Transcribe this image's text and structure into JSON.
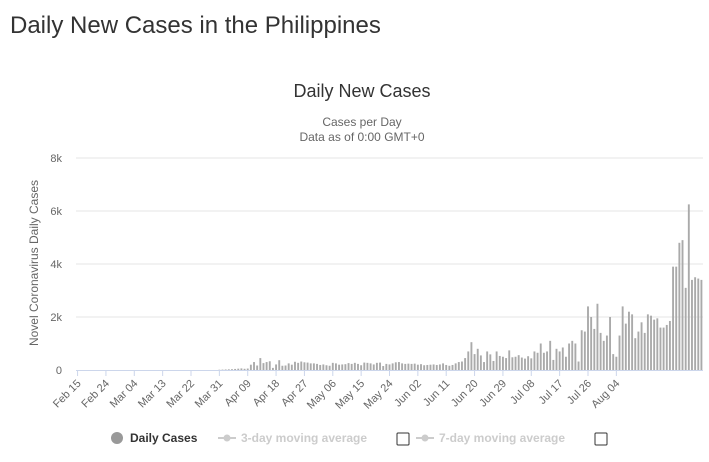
{
  "page": {
    "heading": "Daily New Cases in the Philippines"
  },
  "colors": {
    "bar": "#aaaaaa",
    "grid": "#e6e6e6",
    "axis": "#ccd6eb",
    "legend_active": "#333333",
    "legend_inactive": "#cccccc",
    "legend_active_dot": "#999999"
  },
  "legend": {
    "items": [
      {
        "label": "Daily Cases",
        "active": true,
        "checkbox": false
      },
      {
        "label": "3-day moving average",
        "active": false,
        "checkbox": true
      },
      {
        "label": "7-day moving average",
        "active": false,
        "checkbox": true
      }
    ]
  },
  "chart_data": {
    "type": "bar",
    "title": "Daily New Cases",
    "subtitle": "Cases per Day",
    "subtitle2": "Data as of 0:00 GMT+0",
    "ylabel": "Novel Coronavirus Daily Cases",
    "xlabel": "",
    "ylim": [
      0,
      8000
    ],
    "y_ticks": [
      0,
      2000,
      4000,
      6000,
      8000
    ],
    "y_tick_labels": [
      "0",
      "2k",
      "4k",
      "6k",
      "8k"
    ],
    "grid": true,
    "legend_position": "bottom",
    "x_tick_labels": [
      "Feb 15",
      "Feb 24",
      "Mar 04",
      "Mar 13",
      "Mar 22",
      "Mar 31",
      "Apr 09",
      "Apr 18",
      "Apr 27",
      "May 06",
      "May 15",
      "May 24",
      "Jun 02",
      "Jun 11",
      "Jun 20",
      "Jun 29",
      "Jul 08",
      "Jul 17",
      "Jul 26",
      "Aug 04"
    ],
    "x_tick_every": 9,
    "start_label": "Feb 15",
    "series": [
      {
        "name": "Daily Cases",
        "values": [
          0,
          0,
          0,
          0,
          0,
          0,
          0,
          0,
          0,
          0,
          0,
          0,
          0,
          0,
          0,
          0,
          0,
          0,
          0,
          0,
          0,
          0,
          0,
          0,
          0,
          0,
          0,
          0,
          0,
          0,
          0,
          0,
          0,
          0,
          0,
          0,
          0,
          0,
          0,
          0,
          0,
          0,
          0,
          0,
          0,
          10,
          15,
          20,
          25,
          30,
          40,
          50,
          60,
          45,
          55,
          200,
          300,
          170,
          450,
          260,
          300,
          330,
          80,
          210,
          370,
          160,
          170,
          250,
          200,
          310,
          270,
          320,
          290,
          280,
          250,
          250,
          230,
          190,
          210,
          180,
          160,
          270,
          250,
          200,
          210,
          220,
          260,
          230,
          270,
          230,
          180,
          280,
          270,
          250,
          210,
          270,
          280,
          150,
          230,
          210,
          250,
          290,
          300,
          250,
          230,
          240,
          230,
          240,
          200,
          220,
          180,
          190,
          200,
          210,
          190,
          210,
          250,
          190,
          160,
          190,
          250,
          300,
          320,
          450,
          700,
          1050,
          600,
          800,
          550,
          300,
          700,
          590,
          340,
          700,
          530,
          500,
          450,
          740,
          480,
          500,
          560,
          470,
          430,
          520,
          440,
          700,
          650,
          1000,
          650,
          700,
          1100,
          380,
          800,
          700,
          850,
          500,
          1000,
          1100,
          1000,
          320,
          1500,
          1450,
          2400,
          2000,
          1550,
          2500,
          1400,
          1100,
          1300,
          2000,
          600,
          500,
          1300,
          2400,
          1750,
          2200,
          2100,
          1200,
          1450,
          1800,
          1400,
          2100,
          2050,
          1900,
          1950,
          1600,
          1600,
          1700,
          1850,
          3900,
          3900,
          4800,
          4900,
          3100,
          6250,
          3400,
          3500,
          3450,
          3400
        ]
      }
    ]
  }
}
